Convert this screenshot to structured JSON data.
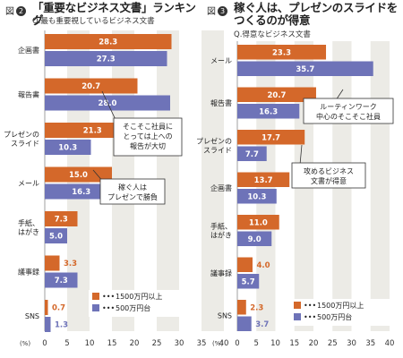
{
  "panels": [
    {
      "fig_label": "図",
      "fig_num": "2",
      "title_lines": [
        "「重要なビジネス文書」ランキング"
      ],
      "subtitle": "Q.最も重要視しているビジネス文書",
      "unit": "(%)",
      "callouts": [
        {
          "lines": [
            "そこそこ社員に",
            "とっては上への",
            "報告が大切"
          ]
        },
        {
          "lines": [
            "稼ぐ人は",
            "プレゼンで勝負"
          ]
        }
      ],
      "legend": [
        "1500万円以上",
        "500万円台"
      ]
    },
    {
      "fig_label": "図",
      "fig_num": "3",
      "title_lines": [
        "稼ぐ人は、プレゼンのスライドを",
        "つくるのが得意"
      ],
      "subtitle": "Q.得意なビジネス文書",
      "unit": "(%)",
      "callouts": [
        {
          "lines": [
            "ルーティンワーク",
            "中心のそこそこ社員"
          ]
        },
        {
          "lines": [
            "攻めるビジネス",
            "文書が得意"
          ]
        }
      ],
      "legend": [
        "1500万円以上",
        "500万円台"
      ]
    }
  ],
  "chart_data": [
    {
      "type": "bar",
      "orientation": "horizontal",
      "title": "「重要なビジネス文書」ランキング",
      "subtitle": "Q.最も重要視しているビジネス文書",
      "categories": [
        "企画書",
        "報告書",
        "プレゼンの\nスライド",
        "メール",
        "手紙、\nはがき",
        "議事録",
        "SNS"
      ],
      "series": [
        {
          "name": "1500万円以上",
          "color": "#d4682a",
          "values": [
            28.3,
            20.7,
            21.3,
            15.0,
            7.3,
            3.3,
            0.7
          ]
        },
        {
          "name": "500万円台",
          "color": "#6e73b8",
          "values": [
            27.3,
            28.0,
            10.3,
            16.3,
            5.0,
            7.3,
            1.3
          ]
        }
      ],
      "xlim": [
        0,
        40
      ],
      "xticks": [
        0,
        5,
        10,
        15,
        20,
        25,
        30,
        35,
        40
      ],
      "xlabel": "(%)",
      "legend_position": "bottom-right"
    },
    {
      "type": "bar",
      "orientation": "horizontal",
      "title": "稼ぐ人は、プレゼンのスライドをつくるのが得意",
      "subtitle": "Q.得意なビジネス文書",
      "categories": [
        "メール",
        "報告書",
        "プレゼンの\nスライド",
        "企画書",
        "手紙、\nはがき",
        "議事録",
        "SNS"
      ],
      "series": [
        {
          "name": "1500万円以上",
          "color": "#d4682a",
          "values": [
            23.3,
            20.7,
            17.7,
            13.7,
            11.0,
            4.0,
            2.3
          ]
        },
        {
          "name": "500万円台",
          "color": "#6e73b8",
          "values": [
            35.7,
            16.3,
            7.7,
            10.3,
            9.0,
            5.7,
            3.7
          ]
        }
      ],
      "xlim": [
        0,
        40
      ],
      "xticks": [
        0,
        5,
        10,
        15,
        20,
        25,
        30,
        35,
        40
      ],
      "xlabel": "(%)",
      "legend_position": "bottom-right"
    }
  ]
}
